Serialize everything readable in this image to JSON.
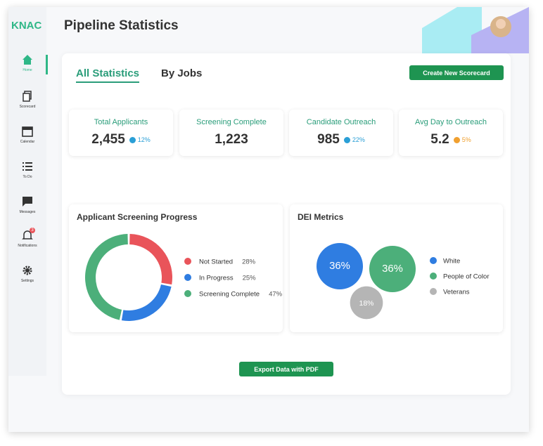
{
  "brand": "KNAC",
  "header": {
    "title": "Pipeline Statistics"
  },
  "sidebar": [
    {
      "label": "Home",
      "active": true
    },
    {
      "label": "Scorecard"
    },
    {
      "label": "Calendar"
    },
    {
      "label": "To Do"
    },
    {
      "label": "Messages"
    },
    {
      "label": "Notifications",
      "badge": "3"
    },
    {
      "label": "Settings"
    }
  ],
  "tabs": [
    "All Statistics",
    "By Jobs"
  ],
  "buttons": {
    "create": "Create New Scorecard",
    "export": "Export Data with PDF"
  },
  "stats": [
    {
      "label": "Total Applicants",
      "value": "2,455",
      "change": "12%",
      "color": "#2a9fd6"
    },
    {
      "label": "Screening Complete",
      "value": "1,223"
    },
    {
      "label": "Candidate Outreach",
      "value": "985",
      "change": "22%",
      "color": "#2a9fd6"
    },
    {
      "label": "Avg Day to Outreach",
      "value": "5.2",
      "change": "5%",
      "color": "#f0a030"
    }
  ],
  "charts": [
    {
      "type": "donut",
      "title": "Applicant Screening Progress",
      "categories": [
        "Not Started",
        "In Progress",
        "Screening Complete"
      ],
      "values": [
        28,
        25,
        47
      ],
      "value_labels": [
        "28%",
        "25%",
        "47%"
      ],
      "colors": [
        "#e9545a",
        "#2f7de1",
        "#4caf7a"
      ]
    },
    {
      "type": "bubble",
      "title": "DEI Metrics",
      "categories": [
        "White",
        "People of Color",
        "Veterans"
      ],
      "values": [
        36,
        36,
        18
      ],
      "value_labels": [
        "36%",
        "36%",
        "18%"
      ],
      "colors": [
        "#2f7de1",
        "#4caf7a",
        "#b5b5b5"
      ]
    }
  ]
}
